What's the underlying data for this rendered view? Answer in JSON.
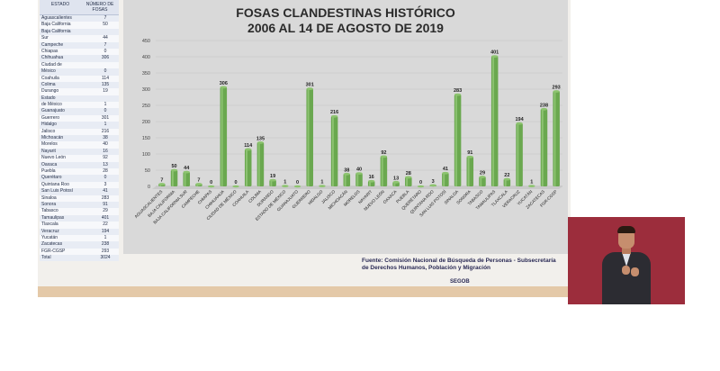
{
  "table": {
    "header_estado": "ESTADO",
    "header_numero": "NÚMERO DE FOSAS",
    "rows": [
      {
        "estado": "Aguascalientes",
        "fosas": "7"
      },
      {
        "estado": "Baja California",
        "fosas": "50"
      },
      {
        "estado": "Baja California",
        "fosas": ""
      },
      {
        "estado": "Sur",
        "fosas": "44"
      },
      {
        "estado": "Campeche",
        "fosas": "7"
      },
      {
        "estado": "Chiapas",
        "fosas": "0"
      },
      {
        "estado": "Chihuahua",
        "fosas": "306"
      },
      {
        "estado": "Ciudad de",
        "fosas": ""
      },
      {
        "estado": "México",
        "fosas": "0"
      },
      {
        "estado": "Coahuila",
        "fosas": "114"
      },
      {
        "estado": "Colima",
        "fosas": "135"
      },
      {
        "estado": "Durango",
        "fosas": "19"
      },
      {
        "estado": "Estado",
        "fosas": ""
      },
      {
        "estado": "de México",
        "fosas": "1"
      },
      {
        "estado": "Guanajuato",
        "fosas": "0"
      },
      {
        "estado": "Guerrero",
        "fosas": "301"
      },
      {
        "estado": "Hidalgo",
        "fosas": "1"
      },
      {
        "estado": "Jalisco",
        "fosas": "216"
      },
      {
        "estado": "Michoacán",
        "fosas": "38"
      },
      {
        "estado": "Morelos",
        "fosas": "40"
      },
      {
        "estado": "Nayarit",
        "fosas": "16"
      },
      {
        "estado": "Nuevo León",
        "fosas": "92"
      },
      {
        "estado": "Oaxaca",
        "fosas": "13"
      },
      {
        "estado": "Puebla",
        "fosas": "28"
      },
      {
        "estado": "Querétaro",
        "fosas": "0"
      },
      {
        "estado": "Quintana Roo",
        "fosas": "3"
      },
      {
        "estado": "San Luis Potosí",
        "fosas": "41"
      },
      {
        "estado": "Sinaloa",
        "fosas": "283"
      },
      {
        "estado": "Sonora",
        "fosas": "91"
      },
      {
        "estado": "Tabasco",
        "fosas": "29"
      },
      {
        "estado": "Tamaulipas",
        "fosas": "401"
      },
      {
        "estado": "Tlaxcala",
        "fosas": "22"
      },
      {
        "estado": "Veracruz",
        "fosas": "194"
      },
      {
        "estado": "Yucatán",
        "fosas": "1"
      },
      {
        "estado": "Zacatecas",
        "fosas": "238"
      },
      {
        "estado": "FGR-CGSP",
        "fosas": "293"
      },
      {
        "estado": "Total",
        "fosas": "3024"
      }
    ]
  },
  "chart_data": {
    "type": "bar",
    "title": "FOSAS CLANDESTINAS HISTÓRICO",
    "subtitle": "2006 AL 14 DE AGOSTO DE 2019",
    "xlabel": "",
    "ylabel": "",
    "ylim": [
      0,
      450
    ],
    "yticks": [
      0,
      50,
      100,
      150,
      200,
      250,
      300,
      350,
      400,
      450
    ],
    "grid": true,
    "categories": [
      "AGUASCALIENTES",
      "BAJA CALIFORNIA",
      "BAJA CALIFORNIA SUR",
      "CAMPECHE",
      "CHIAPAS",
      "CHIHUAHUA",
      "CIUDAD DE MÉXICO",
      "COAHUILA",
      "COLIMA",
      "DURANGO",
      "ESTADO DE MÉXICO",
      "GUANAJUATO",
      "GUERRERO",
      "HIDALGO",
      "JALISCO",
      "MICHOACÁN",
      "MORELOS",
      "NAYARIT",
      "NUEVO LEÓN",
      "OAXACA",
      "PUEBLA",
      "QUERÉTARO",
      "QUINTANA ROO",
      "SAN LUIS POTOSÍ",
      "SINALOA",
      "SONORA",
      "TABASCO",
      "TAMAULIPAS",
      "TLAXCALA",
      "VERACRUZ",
      "YUCATÁN",
      "ZACATECAS",
      "FGR-CGSP"
    ],
    "values": [
      7,
      50,
      44,
      7,
      0,
      306,
      0,
      114,
      135,
      19,
      1,
      0,
      301,
      1,
      216,
      38,
      40,
      16,
      92,
      13,
      28,
      0,
      3,
      41,
      283,
      91,
      29,
      401,
      22,
      194,
      1,
      238,
      293
    ],
    "bar_color": "#6aa84f"
  },
  "footer": {
    "fuente_line1": "Fuente: Comisión Nacional de Búsqueda de Personas - Subsecretaría",
    "fuente_line2": "de Derechos Humanos, Población y Migración",
    "segob": "SEGOB"
  }
}
